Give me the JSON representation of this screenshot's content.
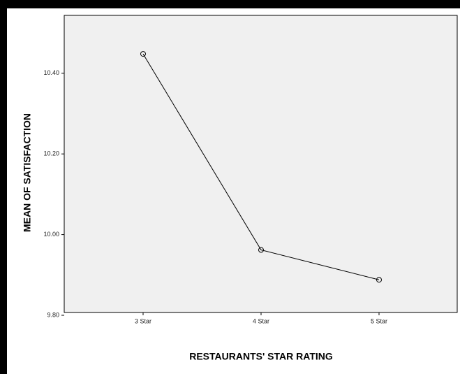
{
  "chart_data": {
    "type": "line",
    "x_label": "RESTAURANTS' STAR RATING",
    "y_label": "MEAN OF SATISFACTION",
    "categories": [
      "3 Star",
      "4 Star",
      "5 Star"
    ],
    "values": [
      10.448,
      9.962,
      9.888
    ],
    "color": "#000000",
    "ylim": [
      9.8,
      10.54
    ],
    "yticks": [
      {
        "value": 9.8,
        "label": "9.80"
      },
      {
        "value": 10.0,
        "label": "10.00"
      },
      {
        "value": 10.2,
        "label": "10.20"
      },
      {
        "value": 10.4,
        "label": "10.40"
      }
    ],
    "grid": false
  }
}
